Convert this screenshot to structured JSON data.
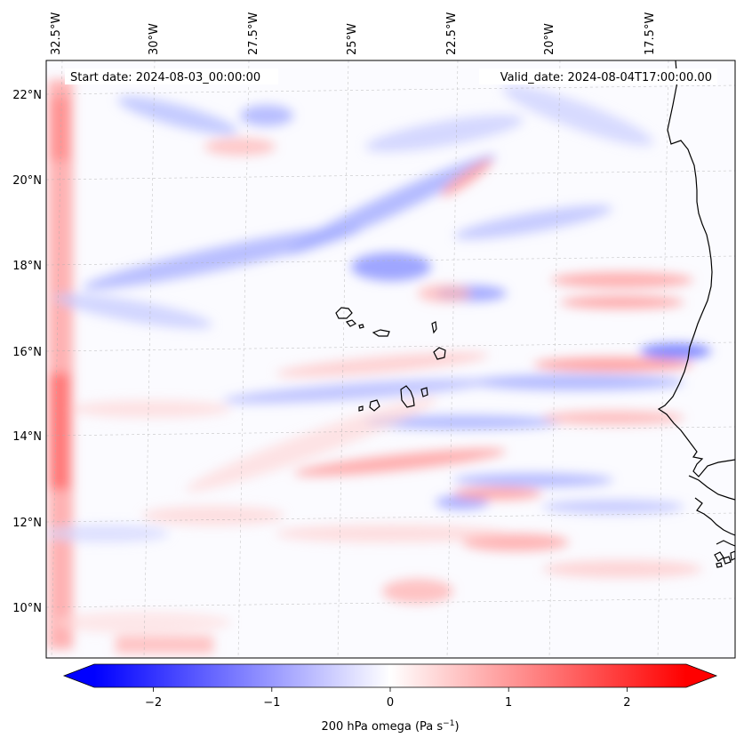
{
  "header": {
    "start_date": "Start date: 2024-08-03_00:00:00",
    "valid_date": "Valid_date: 2024-08-04T17:00:00.00"
  },
  "axes": {
    "lon_ticks": [
      "32.5°W",
      "30°W",
      "27.5°W",
      "25°W",
      "22.5°W",
      "20°W",
      "17.5°W"
    ],
    "lat_ticks": [
      "22°N",
      "20°N",
      "18°N",
      "16°N",
      "14°N",
      "12°N",
      "10°N"
    ]
  },
  "colorbar": {
    "tick_labels": [
      "−2",
      "−1",
      "0",
      "1",
      "2"
    ],
    "tick_values": [
      -2,
      -1,
      0,
      1,
      2
    ],
    "range": [
      -2.5,
      2.5
    ],
    "label_main": "200 hPa omega (Pa s",
    "label_exp": "−1",
    "label_end": ")",
    "colors": {
      "negative": "#0000ff",
      "zero": "#ffffff",
      "positive": "#ff0000"
    }
  },
  "colors": {
    "coastline": "#000000",
    "gridline": "#b0b0b0"
  }
}
